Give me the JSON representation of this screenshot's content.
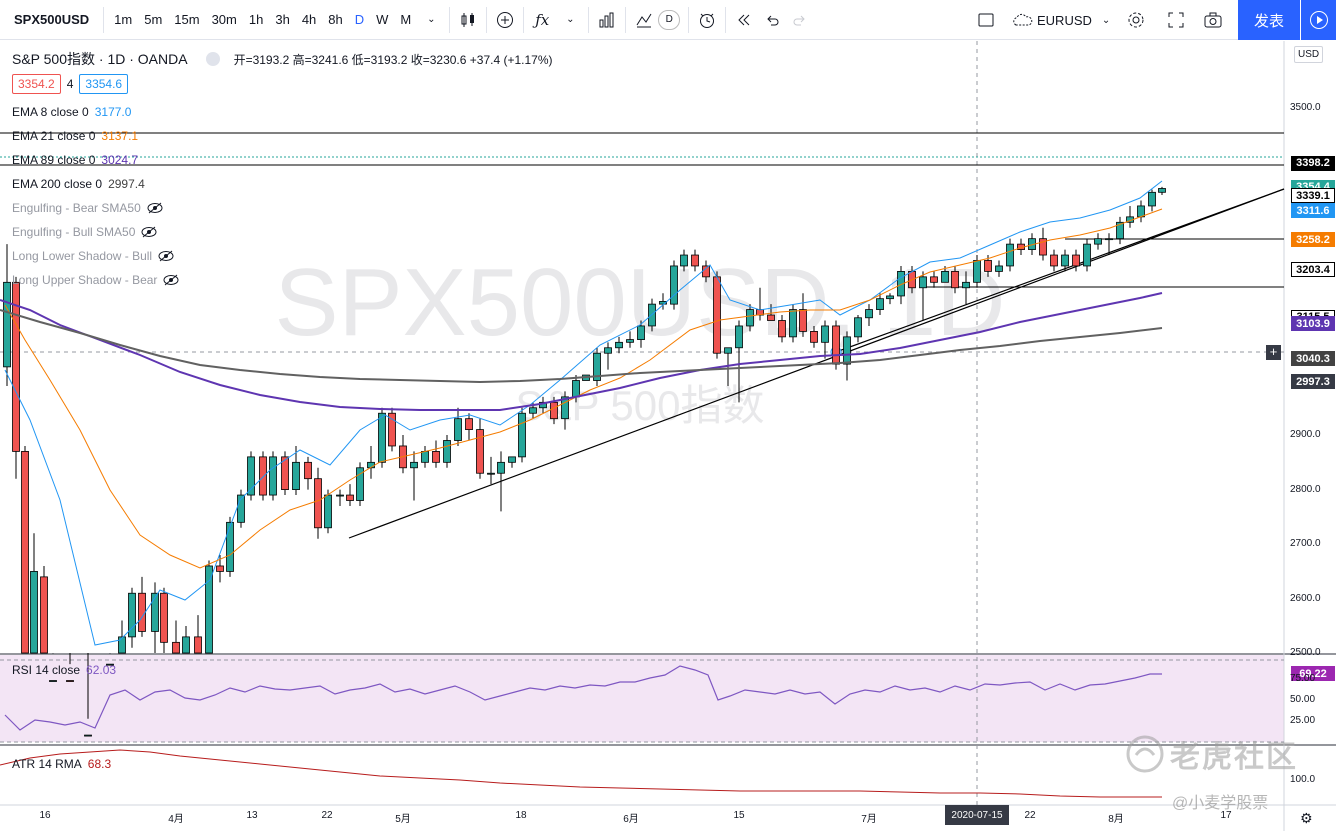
{
  "toolbar": {
    "symbol": "SPX500USD",
    "timeframes": [
      "1m",
      "5m",
      "15m",
      "30m",
      "1h",
      "3h",
      "4h",
      "8h",
      "D",
      "W",
      "M"
    ],
    "active_timeframe": "D",
    "compare_symbol": "EURUSD",
    "publish_label": "发表",
    "indicator_chip": "D"
  },
  "legend": {
    "title": "S&P 500指数 · 1D · OANDA",
    "ohlc": "开=3193.2 高=3241.6 低=3193.2 收=3230.6 +37.4 (+1.17%)",
    "bid": "3354.2",
    "spread": "4",
    "ask": "3354.6",
    "indicators": [
      {
        "label": "EMA 8 close 0",
        "value": "3177.0",
        "color": "#2196f3"
      },
      {
        "label": "EMA 21 close 0",
        "value": "3137.1",
        "color": "#f57c00"
      },
      {
        "label": "EMA 89 close 0",
        "value": "3024.7",
        "color": "#5e35b1"
      },
      {
        "label": "EMA 200 close 0",
        "value": "2997.4",
        "color": "#424242"
      }
    ],
    "hidden": [
      "Engulfing - Bear SMA50",
      "Engulfing - Bull SMA50",
      "Long Lower Shadow - Bull",
      "Long Upper Shadow - Bear"
    ]
  },
  "watermark": {
    "big": "SPX500USD, 1D",
    "small": "S&P 500指数"
  },
  "price_axis": {
    "currency": "USD",
    "ticks": [
      "3500.0",
      "2900.0",
      "2800.0",
      "2700.0",
      "2600.0",
      "2500.0"
    ],
    "labels": [
      {
        "v": "3398.2",
        "bg": "#000000",
        "fg": "#ffffff"
      },
      {
        "v": "3354.4",
        "bg": "#26a69a",
        "fg": "#ffffff"
      },
      {
        "v": "3339.1",
        "bg": "#ffffff",
        "fg": "#000000"
      },
      {
        "v": "3311.6",
        "bg": "#2196f3",
        "fg": "#ffffff"
      },
      {
        "v": "3258.2",
        "bg": "#f57c00",
        "fg": "#ffffff"
      },
      {
        "v": "3203.4",
        "bg": "#ffffff",
        "fg": "#000000"
      },
      {
        "v": "3115.5",
        "bg": "#ffffff",
        "fg": "#000000"
      },
      {
        "v": "3103.9",
        "bg": "#5e35b1",
        "fg": "#ffffff"
      },
      {
        "v": "3040.3",
        "bg": "#424242",
        "fg": "#ffffff"
      },
      {
        "v": "2997.3",
        "bg": "#363a45",
        "fg": "#ffffff"
      }
    ]
  },
  "time_axis": {
    "labels": [
      "16",
      "4月",
      "13",
      "22",
      "5月",
      "18",
      "6月",
      "15",
      "7月",
      "22",
      "8月",
      "17"
    ],
    "cursor": "2020-07-15"
  },
  "rsi": {
    "label": "RSI 14 close",
    "value": "62.03",
    "badge": "69.22",
    "ticks": [
      "75.00",
      "50.00",
      "25.00"
    ]
  },
  "atr": {
    "label": "ATR 14 RMA",
    "value": "68.3",
    "ticks": [
      "100.0"
    ]
  },
  "watermark_brand": {
    "name": "老虎社区",
    "user": "@小麦学股票"
  },
  "colors": {
    "up": "#26a69a",
    "down": "#ef5350",
    "accent": "#2962ff"
  }
}
